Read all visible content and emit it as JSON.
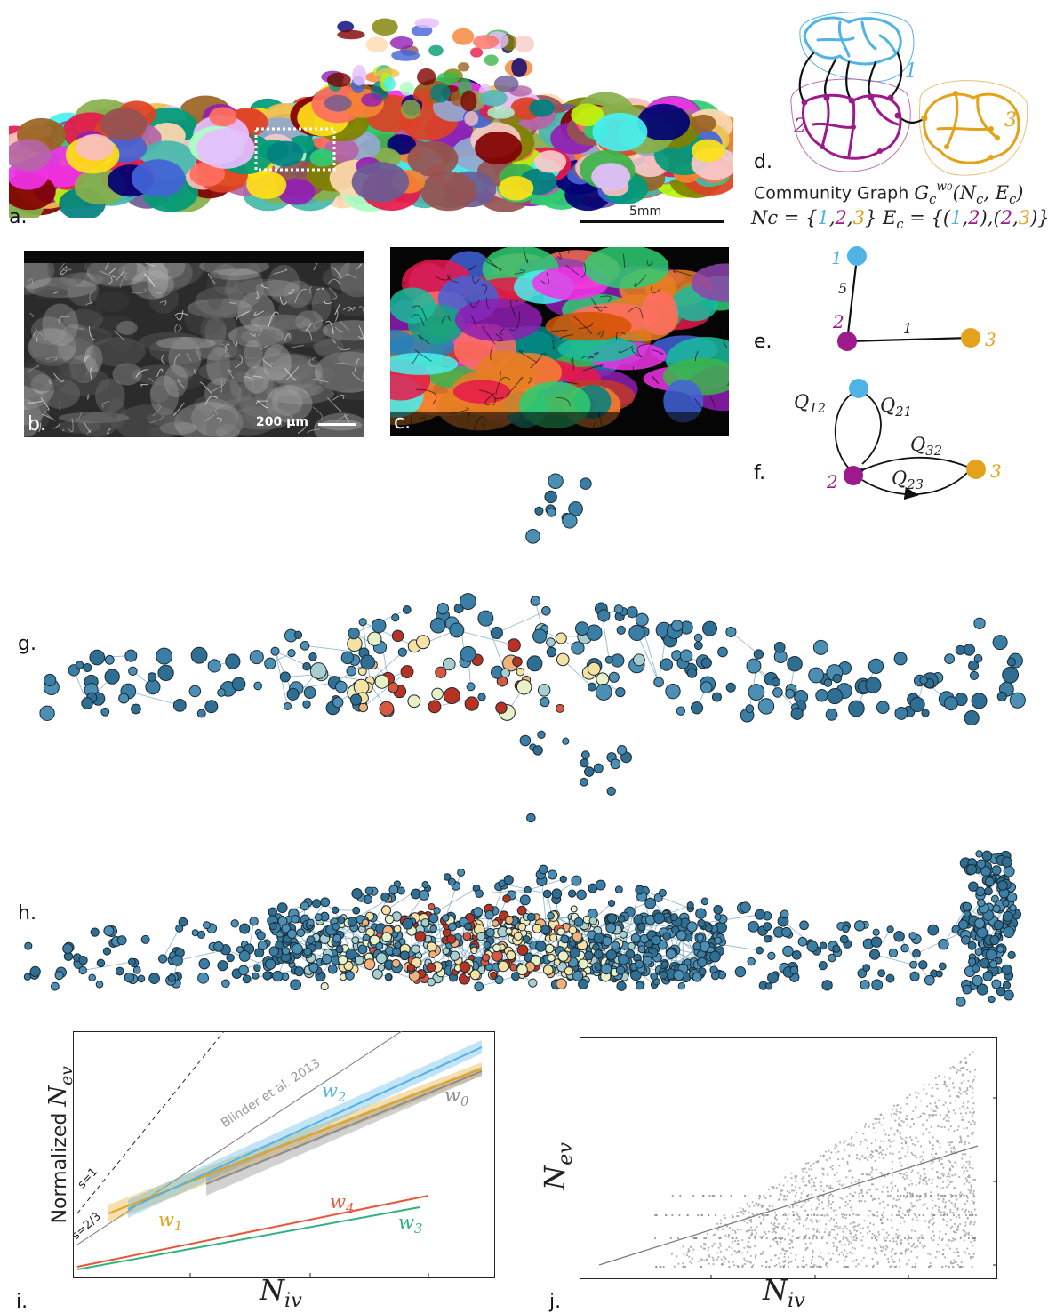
{
  "panels": {
    "a": "a.",
    "b": "b.",
    "c": "c.",
    "d": "d.",
    "e": "e.",
    "f": "f.",
    "g": "g.",
    "h": "h.",
    "i": "i.",
    "j": "j."
  },
  "scalebars": {
    "a": "5mm",
    "b": "200 µm"
  },
  "panel_d": {
    "community_labels": [
      "1",
      "2",
      "3"
    ],
    "title_text": "Community Graph",
    "graph_symbol": "G",
    "graph_sub": "c",
    "graph_sup": "w",
    "graph_sup_sub": "0",
    "graph_args": "(N",
    "graph_args_sub": "c",
    "graph_args_mid": ", E",
    "graph_args_sub2": "c",
    "graph_args_end": ")",
    "nodes_lhs": "Nc = {",
    "nodes_rhs": "}",
    "edges_lhs": "E",
    "edges_lhs_sub": "c",
    "edges_eq": " = {",
    "edge1": "(1,2)",
    "edge_sep": ",",
    "edge2": "(2,3)",
    "edges_end": "}",
    "colors": {
      "c1": "#4fb3e6",
      "c2": "#9c1a8c",
      "c3": "#e3a21a"
    }
  },
  "panel_e": {
    "nodes": [
      "1",
      "2",
      "3"
    ],
    "edge_weights": [
      "5",
      "1"
    ]
  },
  "panel_f": {
    "nodes": [
      "1",
      "2",
      "3"
    ],
    "flows": [
      {
        "base": "Q",
        "sub": "12"
      },
      {
        "base": "Q",
        "sub": "21"
      },
      {
        "base": "Q",
        "sub": "32"
      },
      {
        "base": "Q",
        "sub": "23"
      }
    ]
  },
  "chart_data": [
    {
      "type": "line",
      "xlabel_base": "N",
      "xlabel_sub": "iv",
      "ylabel_prefix": "Normalized ",
      "ylabel_base": "N",
      "ylabel_sub": "ev",
      "annotations": [
        "s=1",
        "s=2/3",
        "Blinder et al. 2013"
      ],
      "series": [
        {
          "name": "w",
          "sub": "0",
          "color": "#8c8c8c"
        },
        {
          "name": "w",
          "sub": "1",
          "color": "#e3a21a"
        },
        {
          "name": "w",
          "sub": "2",
          "color": "#4fb3e6"
        },
        {
          "name": "w",
          "sub": "3",
          "color": "#2fb37a"
        },
        {
          "name": "w",
          "sub": "4",
          "color": "#e8553a"
        }
      ]
    },
    {
      "type": "scatter",
      "xlabel_base": "N",
      "xlabel_sub": "iv",
      "ylabel_base": "N",
      "ylabel_sub": "ev"
    }
  ]
}
